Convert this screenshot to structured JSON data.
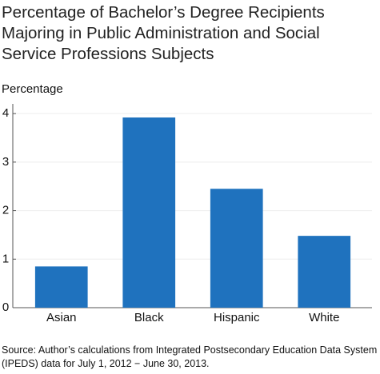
{
  "chart_data": {
    "type": "bar",
    "title": "Percentage of Bachelor’s Degree Recipients Majoring in Public Administration and Social Service Professions Subjects",
    "y_label": "Percentage",
    "categories": [
      "Asian",
      "Black",
      "Hispanic",
      "White"
    ],
    "values": [
      0.85,
      3.92,
      2.45,
      1.48
    ],
    "color": "#1f72be",
    "ylim": [
      0,
      4.2
    ],
    "yticks": [
      0,
      1,
      2,
      3,
      4
    ],
    "grid": true,
    "source": "Source: Author’s calculations from Integrated Postsecondary Education Data System (IPEDS) data for July 1, 2012 − June 30, 2013."
  }
}
